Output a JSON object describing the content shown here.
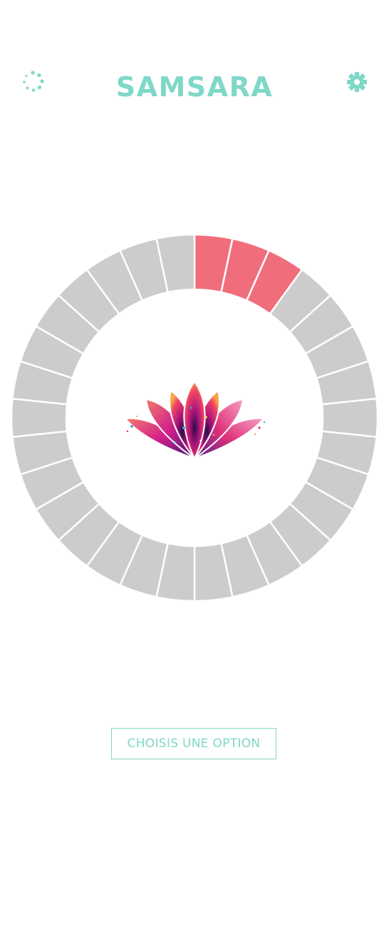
{
  "header": {
    "title": "SAMSARA",
    "menu_icon": "loading-dots-icon",
    "settings_icon": "gear-icon"
  },
  "wheel": {
    "segment_count": 30,
    "filled_count": 3,
    "filled_color": "#f06e7b",
    "empty_color": "#cccccc",
    "center_icon": "lotus-icon"
  },
  "footer": {
    "option_button_label": "CHOISIS UNE OPTION"
  },
  "colors": {
    "accent": "#7fd8c8",
    "progress": "#f06e7b",
    "inactive": "#cccccc"
  }
}
